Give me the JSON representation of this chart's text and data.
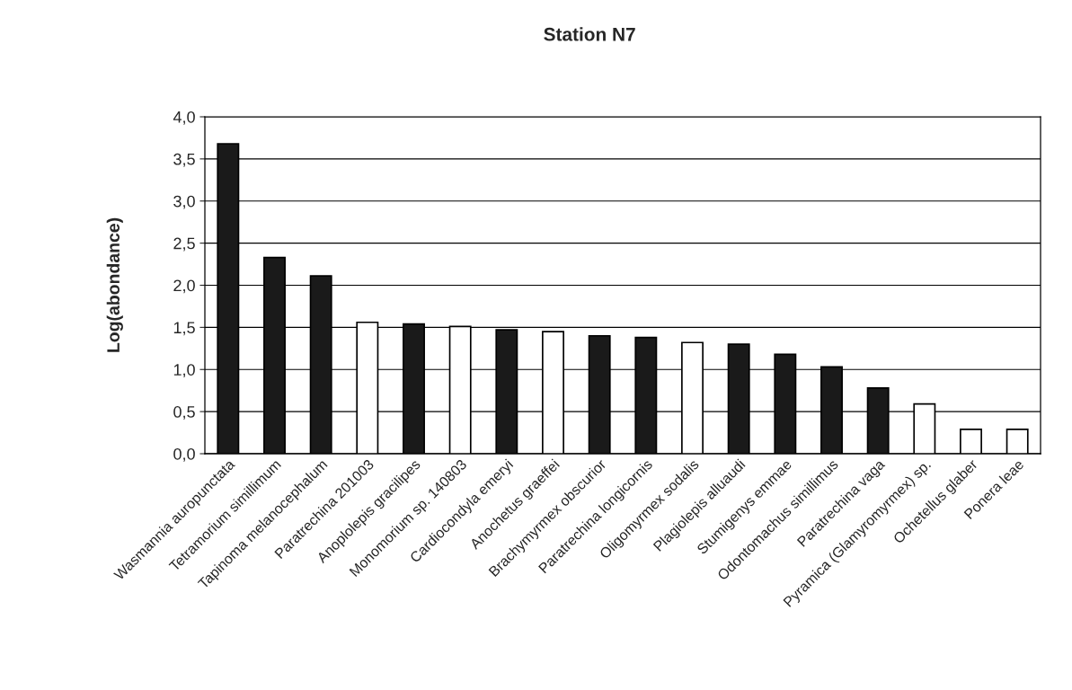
{
  "chart_data": {
    "type": "bar",
    "title": "Station N7",
    "ylabel": "Log(abondance)",
    "categories": [
      "Wasmannia auropunctata",
      "Tetramorium simillimum",
      "Tapinoma melanocephalum",
      "Paratrechina 201003",
      "Anoplolepis gracilipes",
      "Monomorium sp. 140803",
      "Cardiocondyla emeryi",
      "Anochetus graeffei",
      "Brachymyrmex obscurior",
      "Paratrechina longicornis",
      "Oligomyrmex sodalis",
      "Plagiolepis alluaudi",
      "Stumigenys emmae",
      "Odontomachus simillimus",
      "Paratrechina vaga",
      "Pyramica (Glamyromyrmex) sp.",
      "Ochetellus glaber",
      "Ponera leae"
    ],
    "values": [
      3.68,
      2.33,
      2.11,
      1.56,
      1.54,
      1.51,
      1.47,
      1.45,
      1.4,
      1.38,
      1.32,
      1.3,
      1.18,
      1.03,
      0.78,
      0.59,
      0.29,
      0.29
    ],
    "colors": [
      "#1a1a1a",
      "#1a1a1a",
      "#1a1a1a",
      "#ffffff",
      "#1a1a1a",
      "#ffffff",
      "#1a1a1a",
      "#ffffff",
      "#1a1a1a",
      "#1a1a1a",
      "#ffffff",
      "#1a1a1a",
      "#1a1a1a",
      "#1a1a1a",
      "#1a1a1a",
      "#ffffff",
      "#ffffff",
      "#ffffff"
    ],
    "ylim": [
      0,
      4
    ],
    "yticks": [
      {
        "value": 0,
        "label": "0,0"
      },
      {
        "value": 0.5,
        "label": "0,5"
      },
      {
        "value": 1,
        "label": "1,0"
      },
      {
        "value": 1.5,
        "label": "1,5"
      },
      {
        "value": 2,
        "label": "2,0"
      },
      {
        "value": 2.5,
        "label": "2,5"
      },
      {
        "value": 3,
        "label": "3,0"
      },
      {
        "value": 3.5,
        "label": "3,5"
      },
      {
        "value": 4,
        "label": "4,0"
      }
    ],
    "grid": "y",
    "legend": false
  }
}
